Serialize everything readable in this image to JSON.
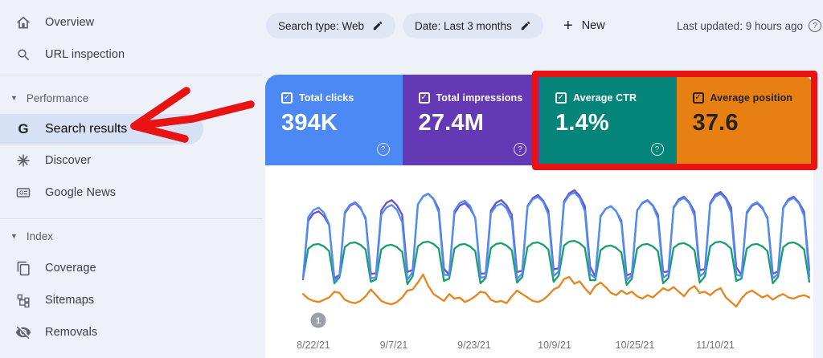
{
  "sidebar": {
    "items": [
      {
        "label": "Overview",
        "icon": "home-icon"
      },
      {
        "label": "URL inspection",
        "icon": "search-icon"
      }
    ],
    "sections": [
      {
        "label": "Performance",
        "items": [
          {
            "label": "Search results",
            "icon": "google-g-icon",
            "active": true
          },
          {
            "label": "Discover",
            "icon": "spark-icon"
          },
          {
            "label": "Google News",
            "icon": "news-icon"
          }
        ]
      },
      {
        "label": "Index",
        "items": [
          {
            "label": "Coverage",
            "icon": "pages-icon"
          },
          {
            "label": "Sitemaps",
            "icon": "sitemap-icon"
          },
          {
            "label": "Removals",
            "icon": "eye-off-icon"
          }
        ]
      }
    ]
  },
  "toolbar": {
    "search_type_chip": "Search type: Web",
    "date_chip": "Date: Last 3 months",
    "new_button": "New",
    "plus_glyph": "+",
    "last_updated": "Last updated: 9 hours ago",
    "help_glyph": "?"
  },
  "metrics": [
    {
      "label": "Total clicks",
      "value": "394K",
      "color": "#4c89f4",
      "checked": true
    },
    {
      "label": "Total impressions",
      "value": "27.4M",
      "color": "#6538b5",
      "checked": true
    },
    {
      "label": "Average CTR",
      "value": "1.4%",
      "color": "#05857a",
      "checked": true
    },
    {
      "label": "Average position",
      "value": "37.6",
      "color": "#e87f12",
      "checked": true
    }
  ],
  "annotations": {
    "marker_label": "1",
    "highlight_color": "#e81313"
  },
  "checkmark_glyph": "✓",
  "chart_data": {
    "type": "line",
    "x_unit": "day",
    "x_tick_labels": [
      "8/22/21",
      "9/7/21",
      "9/23/21",
      "10/9/21",
      "10/25/21",
      "11/10/21"
    ],
    "legend_position": "none",
    "grid": false,
    "series": [
      {
        "key": "position",
        "name": "Average position",
        "color": "#e8831d",
        "values": [
          37.9,
          37.5,
          37.3,
          37.2,
          37.4,
          37.6,
          38.1,
          38.0,
          37.4,
          37.2,
          37.1,
          37.3,
          37.7,
          38.3,
          37.8,
          37.3,
          37.1,
          37.0,
          37.2,
          37.6,
          38.2,
          38.3,
          38.9,
          39.6,
          38.6,
          37.9,
          37.6,
          37.3,
          37.9,
          37.5,
          37.6,
          37.2,
          37.4,
          37.7,
          38.1,
          38.0,
          37.4,
          37.2,
          37.3,
          37.1,
          37.7,
          38.2,
          37.9,
          37.6,
          37.3,
          37.2,
          37.4,
          37.8,
          38.3,
          38.5,
          39.2,
          39.4,
          38.8,
          39.0,
          38.4,
          37.9,
          38.6,
          38.9,
          38.5,
          38.0,
          37.8,
          38.2,
          37.9,
          38.1,
          37.7,
          37.5,
          37.8,
          37.6,
          38.0,
          38.4,
          38.2,
          38.5,
          38.1,
          37.7,
          38.3,
          38.6,
          38.0,
          38.1,
          37.8,
          38.2,
          38.4,
          37.6,
          37.2,
          36.8,
          37.5,
          38.0,
          38.2,
          37.9,
          37.6,
          37.8,
          37.4,
          37.7,
          37.9,
          37.6,
          37.5,
          37.7,
          37.8,
          37.6
        ]
      },
      {
        "key": "ctr",
        "name": "Average CTR (%)",
        "color": "#18a06a",
        "values": [
          1.12,
          1.5,
          1.55,
          1.56,
          1.53,
          1.47,
          1.06,
          1.14,
          1.52,
          1.57,
          1.58,
          1.55,
          1.49,
          1.08,
          1.11,
          1.49,
          1.54,
          1.55,
          1.52,
          1.46,
          1.05,
          1.15,
          1.53,
          1.58,
          1.59,
          1.56,
          1.5,
          1.09,
          1.12,
          1.5,
          1.55,
          1.56,
          1.53,
          1.47,
          1.06,
          1.13,
          1.51,
          1.56,
          1.57,
          1.54,
          1.48,
          1.07,
          1.14,
          1.52,
          1.57,
          1.58,
          1.55,
          1.49,
          1.08,
          1.16,
          1.54,
          1.59,
          1.6,
          1.57,
          1.51,
          1.1,
          1.1,
          1.48,
          1.53,
          1.54,
          1.51,
          1.45,
          1.04,
          1.12,
          1.5,
          1.55,
          1.56,
          1.53,
          1.47,
          1.06,
          1.13,
          1.51,
          1.56,
          1.57,
          1.54,
          1.48,
          1.07,
          1.15,
          1.53,
          1.58,
          1.59,
          1.56,
          1.5,
          1.09,
          1.12,
          1.5,
          1.55,
          1.56,
          1.53,
          1.47,
          1.06,
          1.14,
          1.52,
          1.57,
          1.58,
          1.55,
          1.49,
          1.08
        ]
      },
      {
        "key": "impressions",
        "name": "Total impressions (K/day)",
        "color": "#6e4fc4",
        "values": [
          195,
          331,
          348,
          353,
          342,
          321,
          198,
          205,
          348,
          366,
          372,
          360,
          338,
          208,
          209,
          355,
          373,
          379,
          367,
          345,
          212,
          217,
          369,
          388,
          394,
          382,
          358,
          220,
          205,
          348,
          366,
          372,
          360,
          338,
          208,
          209,
          355,
          373,
          379,
          367,
          345,
          212,
          215,
          365,
          384,
          391,
          378,
          355,
          218,
          221,
          376,
          395,
          402,
          389,
          365,
          225,
          201,
          341,
          359,
          365,
          353,
          331,
          204,
          209,
          355,
          373,
          379,
          367,
          345,
          212,
          213,
          362,
          381,
          387,
          374,
          352,
          216,
          219,
          372,
          392,
          398,
          385,
          362,
          223,
          205,
          348,
          366,
          372,
          360,
          338,
          208,
          213,
          362,
          381,
          387,
          374,
          352,
          216
        ]
      },
      {
        "key": "clicks",
        "name": "Total clicks (K/day)",
        "color": "#4f8df6",
        "values": [
          2.5,
          4.99,
          5.28,
          5.38,
          5.18,
          4.7,
          2.4,
          2.6,
          5.2,
          5.5,
          5.6,
          5.4,
          4.9,
          2.5,
          2.55,
          5.1,
          5.39,
          5.49,
          5.29,
          4.8,
          2.45,
          2.76,
          5.51,
          5.83,
          5.94,
          5.72,
          5.19,
          2.65,
          2.63,
          5.25,
          5.56,
          5.66,
          5.45,
          4.95,
          2.53,
          2.57,
          5.15,
          5.45,
          5.54,
          5.35,
          4.85,
          2.48,
          2.7,
          5.41,
          5.72,
          5.82,
          5.62,
          5.1,
          2.6,
          2.78,
          5.56,
          5.89,
          5.99,
          5.78,
          5.24,
          2.68,
          2.52,
          5.04,
          5.34,
          5.43,
          5.24,
          4.75,
          2.43,
          2.63,
          5.25,
          5.56,
          5.66,
          5.45,
          4.95,
          2.53,
          2.68,
          5.36,
          5.67,
          5.77,
          5.56,
          5.05,
          2.58,
          2.76,
          5.51,
          5.83,
          5.94,
          5.72,
          5.19,
          2.65,
          2.6,
          5.2,
          5.5,
          5.6,
          5.4,
          4.9,
          2.5,
          2.68,
          5.36,
          5.67,
          5.77,
          5.56,
          5.05,
          2.58
        ]
      }
    ]
  }
}
